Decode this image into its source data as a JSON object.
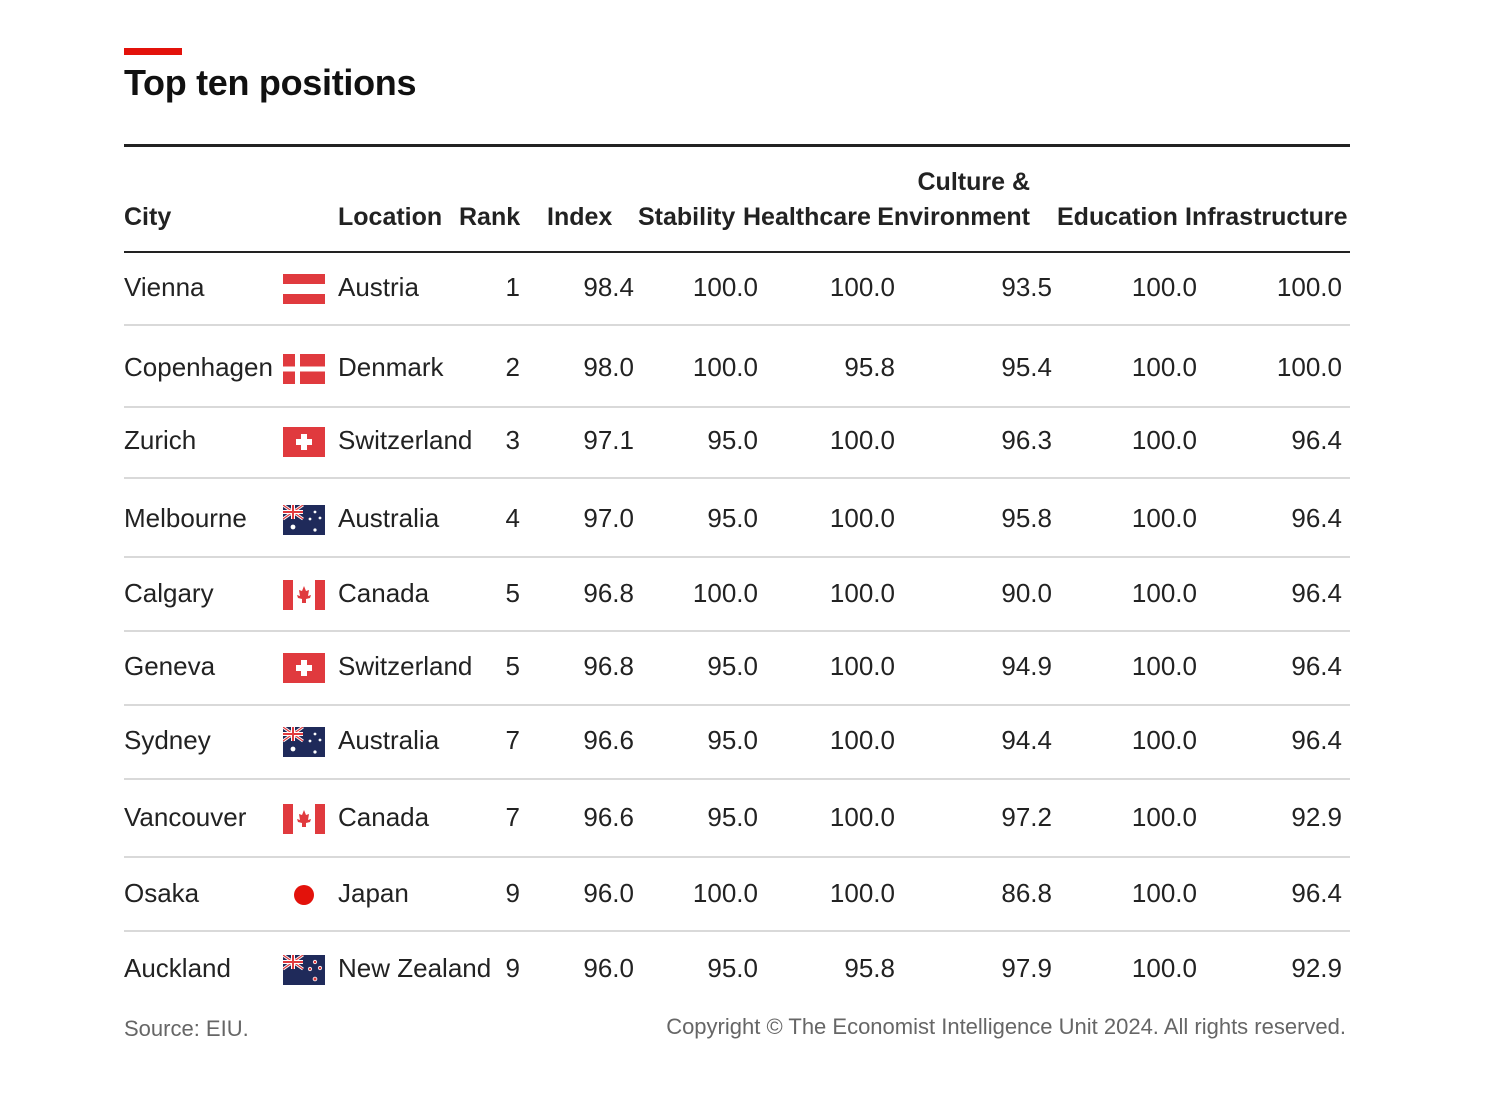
{
  "title": "Top ten positions",
  "chart_data": {
    "type": "table",
    "title": "Top ten positions",
    "columns": [
      "City",
      "Location",
      "Rank",
      "Index",
      "Stability",
      "Healthcare",
      "Culture & Environment",
      "Education",
      "Infrastructure"
    ],
    "rows": [
      {
        "city": "Vienna",
        "flag": "austria-flag",
        "location": "Austria",
        "rank": "1",
        "index": "98.4",
        "stability": "100.0",
        "healthcare": "100.0",
        "culture": "93.5",
        "education": "100.0",
        "infrastructure": "100.0"
      },
      {
        "city": "Copenhagen",
        "flag": "denmark-flag",
        "location": "Denmark",
        "rank": "2",
        "index": "98.0",
        "stability": "100.0",
        "healthcare": "95.8",
        "culture": "95.4",
        "education": "100.0",
        "infrastructure": "100.0"
      },
      {
        "city": "Zurich",
        "flag": "switzerland-flag",
        "location": "Switzerland",
        "rank": "3",
        "index": "97.1",
        "stability": "95.0",
        "healthcare": "100.0",
        "culture": "96.3",
        "education": "100.0",
        "infrastructure": "96.4"
      },
      {
        "city": "Melbourne",
        "flag": "australia-flag",
        "location": "Australia",
        "rank": "4",
        "index": "97.0",
        "stability": "95.0",
        "healthcare": "100.0",
        "culture": "95.8",
        "education": "100.0",
        "infrastructure": "96.4"
      },
      {
        "city": "Calgary",
        "flag": "canada-flag",
        "location": "Canada",
        "rank": "5",
        "index": "96.8",
        "stability": "100.0",
        "healthcare": "100.0",
        "culture": "90.0",
        "education": "100.0",
        "infrastructure": "96.4"
      },
      {
        "city": "Geneva",
        "flag": "switzerland-flag",
        "location": "Switzerland",
        "rank": "5",
        "index": "96.8",
        "stability": "95.0",
        "healthcare": "100.0",
        "culture": "94.9",
        "education": "100.0",
        "infrastructure": "96.4"
      },
      {
        "city": "Sydney",
        "flag": "australia-flag",
        "location": "Australia",
        "rank": "7",
        "index": "96.6",
        "stability": "95.0",
        "healthcare": "100.0",
        "culture": "94.4",
        "education": "100.0",
        "infrastructure": "96.4"
      },
      {
        "city": "Vancouver",
        "flag": "canada-flag",
        "location": "Canada",
        "rank": "7",
        "index": "96.6",
        "stability": "95.0",
        "healthcare": "100.0",
        "culture": "97.2",
        "education": "100.0",
        "infrastructure": "92.9"
      },
      {
        "city": "Osaka",
        "flag": "japan-flag",
        "location": "Japan",
        "rank": "9",
        "index": "96.0",
        "stability": "100.0",
        "healthcare": "100.0",
        "culture": "86.8",
        "education": "100.0",
        "infrastructure": "96.4"
      },
      {
        "city": "Auckland",
        "flag": "new-zealand-flag",
        "location": "New Zealand",
        "rank": "9",
        "index": "96.0",
        "stability": "95.0",
        "healthcare": "95.8",
        "culture": "97.9",
        "education": "100.0",
        "infrastructure": "92.9"
      }
    ]
  },
  "headers": {
    "city": "City",
    "location": "Location",
    "rank": "Rank",
    "index": "Index",
    "stability": "Stability",
    "healthcare": "Healthcare",
    "culture_line1": "Culture &",
    "culture_line2": "Environment",
    "education": "Education",
    "infrastructure": "Infrastructure"
  },
  "footer": {
    "source": "Source: EIU.",
    "copyright": "Copyright © The Economist Intelligence Unit 2024. All rights reserved."
  },
  "colors": {
    "accent": "#e3120b",
    "flag_red": "#e03a3e",
    "flag_navy": "#1f2a5a"
  }
}
